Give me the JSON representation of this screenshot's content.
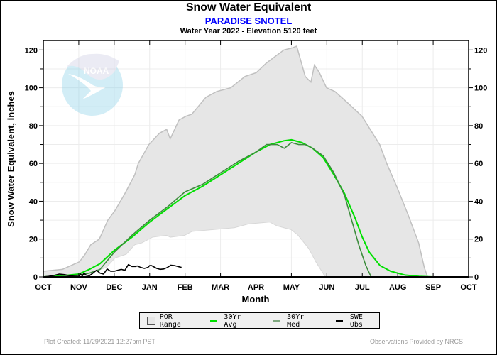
{
  "header": {
    "title": "Snow Water Equivalent",
    "station": "PARADISE SNOTEL",
    "subtitle": "Water Year 2022 -  Elevation 5120 feet"
  },
  "footer": {
    "created": "Plot Created: 11/29/2021 12:27pm PST",
    "credit": "Observations Provided by NRCS"
  },
  "watermark": {
    "icon": "noaa-logo-icon",
    "text": "NOAA"
  },
  "colors": {
    "por_fill": "#e6e6e6",
    "por_edge": "#c0c0c0",
    "avg": "#00e000",
    "med": "#3c8c3c",
    "obs": "#000000",
    "station": "#0000ff"
  },
  "chart_data": {
    "type": "area",
    "title": "Snow Water Equivalent",
    "subtitle": "PARADISE SNOTEL — Water Year 2022 - Elevation 5120 feet",
    "xlabel": "Month",
    "ylabel": "Snow Water Equivalent, inches",
    "x_unit": "months since Oct 1",
    "xlim": [
      0,
      12
    ],
    "ylim": [
      0,
      125
    ],
    "x_ticks": [
      "OCT",
      "NOV",
      "DEC",
      "JAN",
      "FEB",
      "MAR",
      "APR",
      "MAY",
      "JUN",
      "JUL",
      "AUG",
      "SEP",
      "OCT"
    ],
    "y_ticks": [
      0,
      20,
      40,
      60,
      80,
      100,
      120
    ],
    "y_ticks_right": [
      0,
      20,
      40,
      60,
      80,
      100,
      120
    ],
    "grid": true,
    "legend": {
      "placement": "bottom",
      "entries": [
        "POR Range",
        "30Yr Avg",
        "30Yr Med",
        "SWE Obs"
      ]
    },
    "series": [
      {
        "name": "POR Range Upper",
        "x": [
          0,
          0.54,
          1.02,
          1.18,
          1.34,
          1.58,
          1.82,
          2.02,
          2.3,
          2.58,
          2.68,
          2.98,
          3.28,
          3.48,
          3.58,
          3.83,
          4.03,
          4.19,
          4.59,
          4.89,
          5.09,
          5.29,
          5.69,
          6.01,
          6.29,
          6.79,
          7.01,
          7.15,
          7.39,
          7.55,
          7.65,
          7.79,
          7.99,
          8.23,
          8.59,
          8.99,
          9.19,
          9.49,
          9.69,
          9.99,
          10.29,
          10.59,
          10.75,
          10.84
        ],
        "values": [
          3,
          4,
          8,
          12,
          17,
          20,
          30,
          35,
          44,
          54,
          60,
          70,
          76,
          78,
          73,
          83,
          85,
          86,
          95,
          98,
          99,
          100,
          106,
          108,
          113,
          120,
          121,
          122,
          106,
          103,
          112,
          108,
          100,
          98,
          92,
          85,
          79,
          70,
          60,
          47,
          33,
          18,
          5,
          0
        ]
      },
      {
        "name": "POR Range Lower",
        "x": [
          0,
          1.18,
          1.48,
          1.78,
          2.02,
          2.34,
          2.58,
          2.78,
          3.08,
          3.48,
          3.58,
          3.99,
          4.19,
          4.79,
          5.39,
          5.79,
          6.39,
          6.59,
          6.79,
          6.99,
          7.19,
          7.49,
          7.69,
          7.89,
          7.95
        ],
        "values": [
          0,
          0,
          3,
          5,
          10,
          12,
          17,
          18,
          21,
          22,
          21,
          22,
          24,
          25,
          26,
          28,
          29,
          27,
          26,
          25,
          22,
          15,
          8,
          2,
          0
        ]
      },
      {
        "name": "30Yr Avg",
        "x": [
          0,
          0.5,
          1.0,
          1.3,
          1.6,
          2.0,
          2.5,
          3.0,
          3.5,
          4.0,
          4.5,
          5.0,
          5.5,
          6.0,
          6.4,
          6.8,
          7.0,
          7.3,
          7.6,
          7.9,
          8.2,
          8.5,
          8.8,
          9.0,
          9.2,
          9.5,
          9.8,
          10.2,
          10.6,
          11.0,
          12.0
        ],
        "values": [
          0,
          0.5,
          1.5,
          4,
          7,
          14,
          21,
          29,
          36,
          43,
          48,
          54,
          60,
          66,
          70,
          72,
          72.5,
          71,
          68,
          63,
          54,
          44,
          31,
          21,
          13,
          6,
          3,
          1,
          0.3,
          0,
          0
        ]
      },
      {
        "name": "30Yr Med",
        "x": [
          0,
          0.5,
          1.0,
          1.3,
          1.6,
          2.0,
          2.5,
          3.0,
          3.5,
          4.0,
          4.5,
          5.0,
          5.5,
          6.0,
          6.3,
          6.6,
          6.8,
          7.0,
          7.2,
          7.4,
          7.6,
          7.9,
          8.2,
          8.5,
          8.7,
          8.9,
          9.1,
          9.25,
          12.0
        ],
        "values": [
          0,
          0.2,
          1,
          2,
          4,
          13,
          22,
          30,
          37,
          45,
          49,
          55,
          61,
          66,
          70,
          70,
          68,
          71,
          70,
          70,
          68,
          64,
          55,
          43,
          30,
          17,
          6,
          0,
          0
        ]
      },
      {
        "name": "SWE Obs",
        "x": [
          0,
          0.15,
          0.3,
          0.45,
          0.6,
          0.75,
          0.9,
          1.0,
          1.05,
          1.1,
          1.15,
          1.2,
          1.3,
          1.4,
          1.5,
          1.6,
          1.7,
          1.8,
          1.9,
          2.0,
          2.1,
          2.2,
          2.3,
          2.4,
          2.5,
          2.6,
          2.65,
          2.75,
          2.85,
          2.95,
          3.0,
          3.05,
          3.1,
          3.2,
          3.3,
          3.4,
          3.5,
          3.6,
          3.7,
          3.8,
          3.9
        ],
        "values": [
          0,
          0.3,
          0.8,
          1.5,
          1.2,
          0.6,
          0.3,
          0.3,
          1.5,
          0.5,
          2.0,
          1.0,
          0.6,
          2.0,
          3.5,
          2.0,
          1.5,
          4.2,
          3.0,
          3.0,
          3.5,
          4.0,
          3.5,
          6.5,
          5.5,
          5.5,
          5.8,
          5.0,
          4.5,
          5.0,
          6.0,
          6.0,
          5.5,
          4.5,
          4.0,
          4.2,
          5.0,
          6.2,
          6.0,
          5.5,
          5.0
        ]
      }
    ]
  }
}
